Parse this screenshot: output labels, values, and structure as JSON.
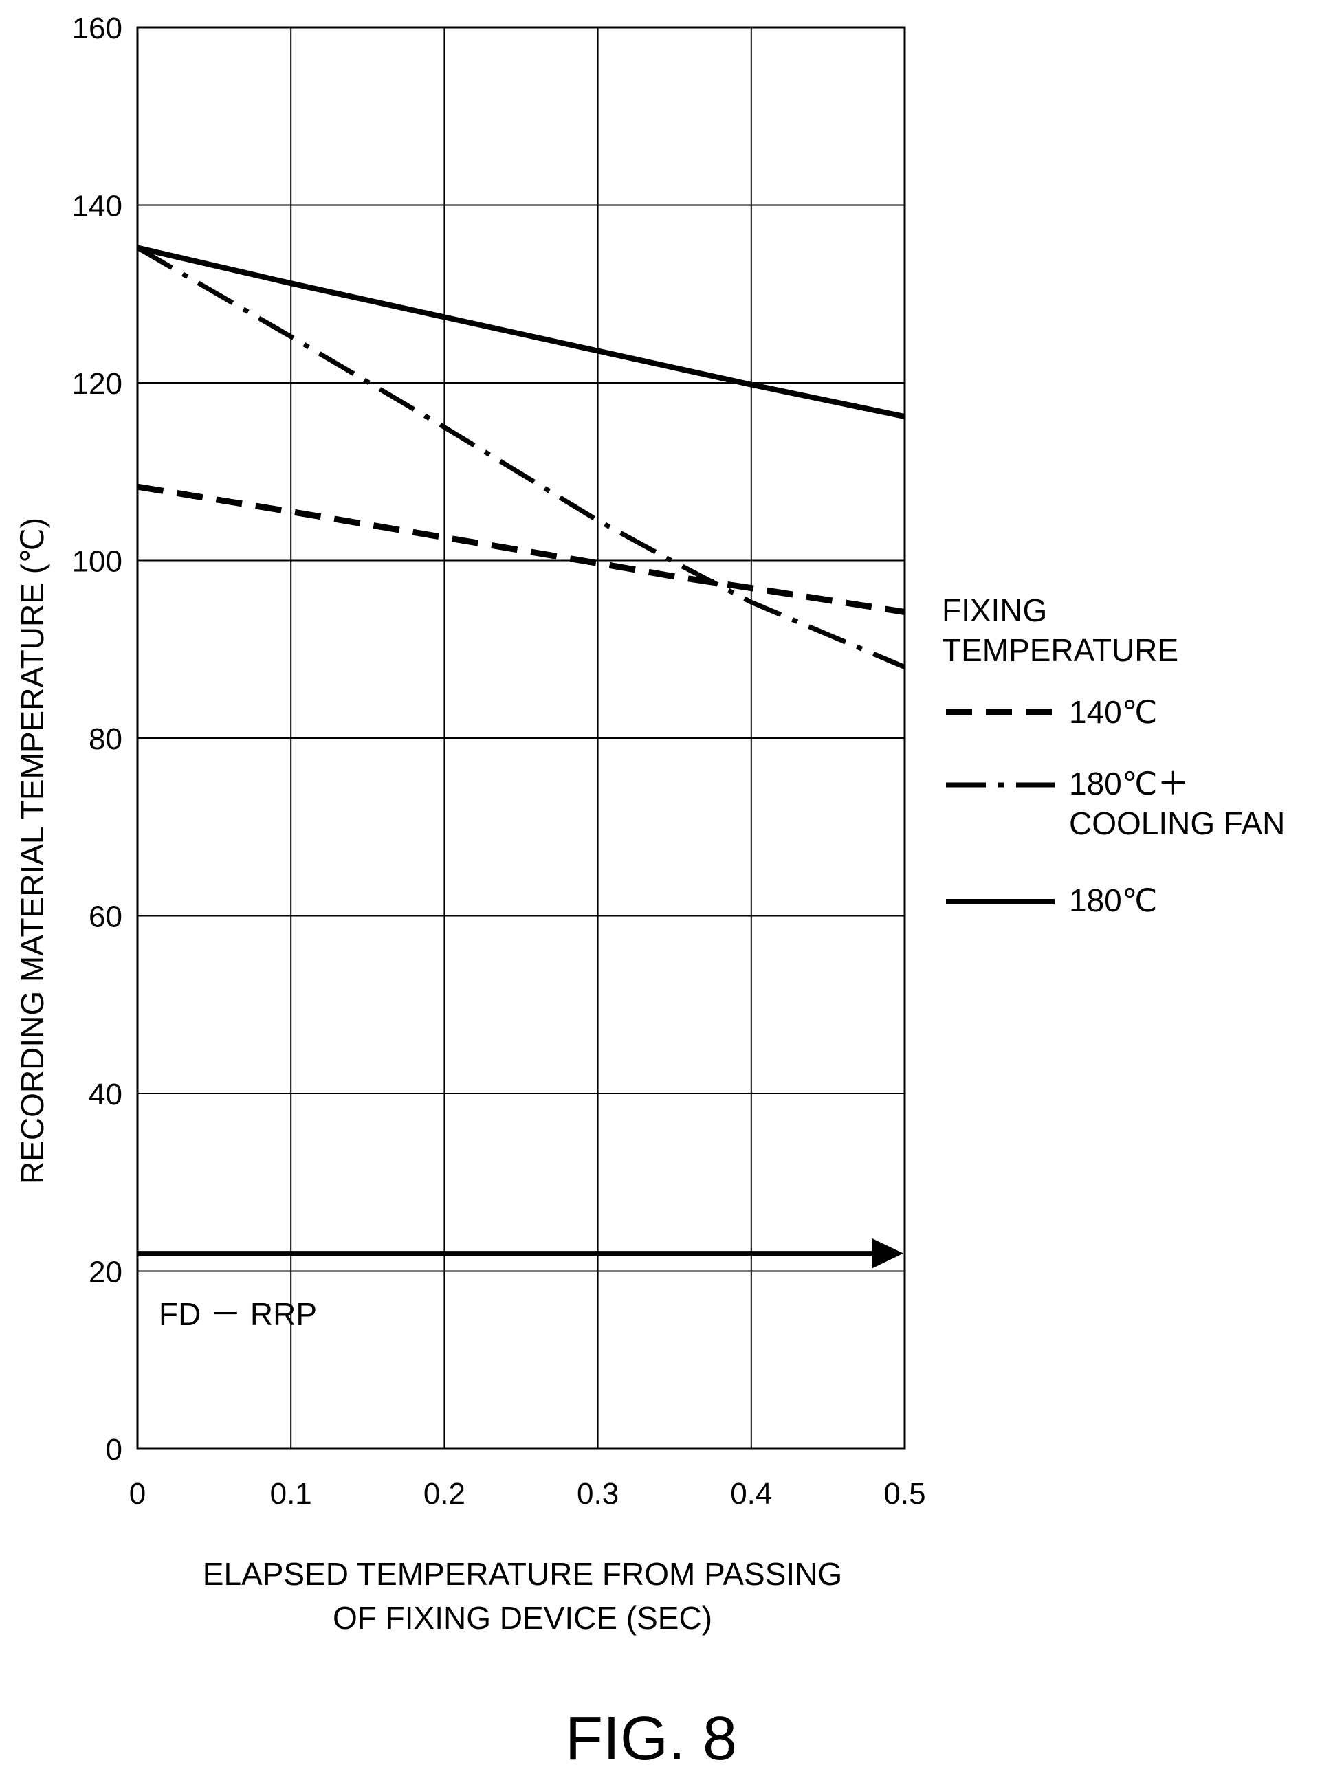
{
  "chart_data": {
    "type": "line",
    "xlabel_lines": [
      "ELAPSED TEMPERATURE FROM PASSING",
      "OF FIXING DEVICE (SEC)"
    ],
    "ylabel": "RECORDING MATERIAL TEMPERATURE (℃)",
    "xlim": [
      0,
      0.5
    ],
    "ylim": [
      0,
      160
    ],
    "xticks": [
      "0",
      "0.1",
      "0.2",
      "0.3",
      "0.4",
      "0.5"
    ],
    "yticks": [
      "0",
      "20",
      "40",
      "60",
      "80",
      "100",
      "120",
      "140",
      "160"
    ],
    "grid": true,
    "legend": {
      "placement": "right",
      "title_lines": [
        "FIXING",
        "TEMPERATURE"
      ]
    },
    "series": [
      {
        "name_lines": [
          "140℃"
        ],
        "style": "dashed",
        "x": [
          0,
          0.1,
          0.2,
          0.3,
          0.35,
          0.4,
          0.5
        ],
        "y": [
          108.3,
          105.5,
          102.6,
          99.7,
          98.2,
          96.9,
          94.2
        ]
      },
      {
        "name_lines": [
          "180℃＋",
          "COOLING FAN"
        ],
        "style": "dashdot",
        "x": [
          0,
          0.1,
          0.2,
          0.3,
          0.35,
          0.4,
          0.5
        ],
        "y": [
          135.2,
          125.2,
          115.0,
          104.5,
          99.8,
          95.3,
          88.0
        ]
      },
      {
        "name_lines": [
          "180℃"
        ],
        "style": "solid",
        "x": [
          0,
          0.1,
          0.2,
          0.3,
          0.4,
          0.5
        ],
        "y": [
          135.2,
          131.2,
          127.4,
          123.6,
          119.8,
          116.2
        ]
      }
    ],
    "annotations": [
      {
        "label": "FD － RRP",
        "arrow_y": 22,
        "x_from": 0,
        "x_to": 0.5
      }
    ]
  },
  "figure": {
    "caption": "FIG. 8"
  }
}
